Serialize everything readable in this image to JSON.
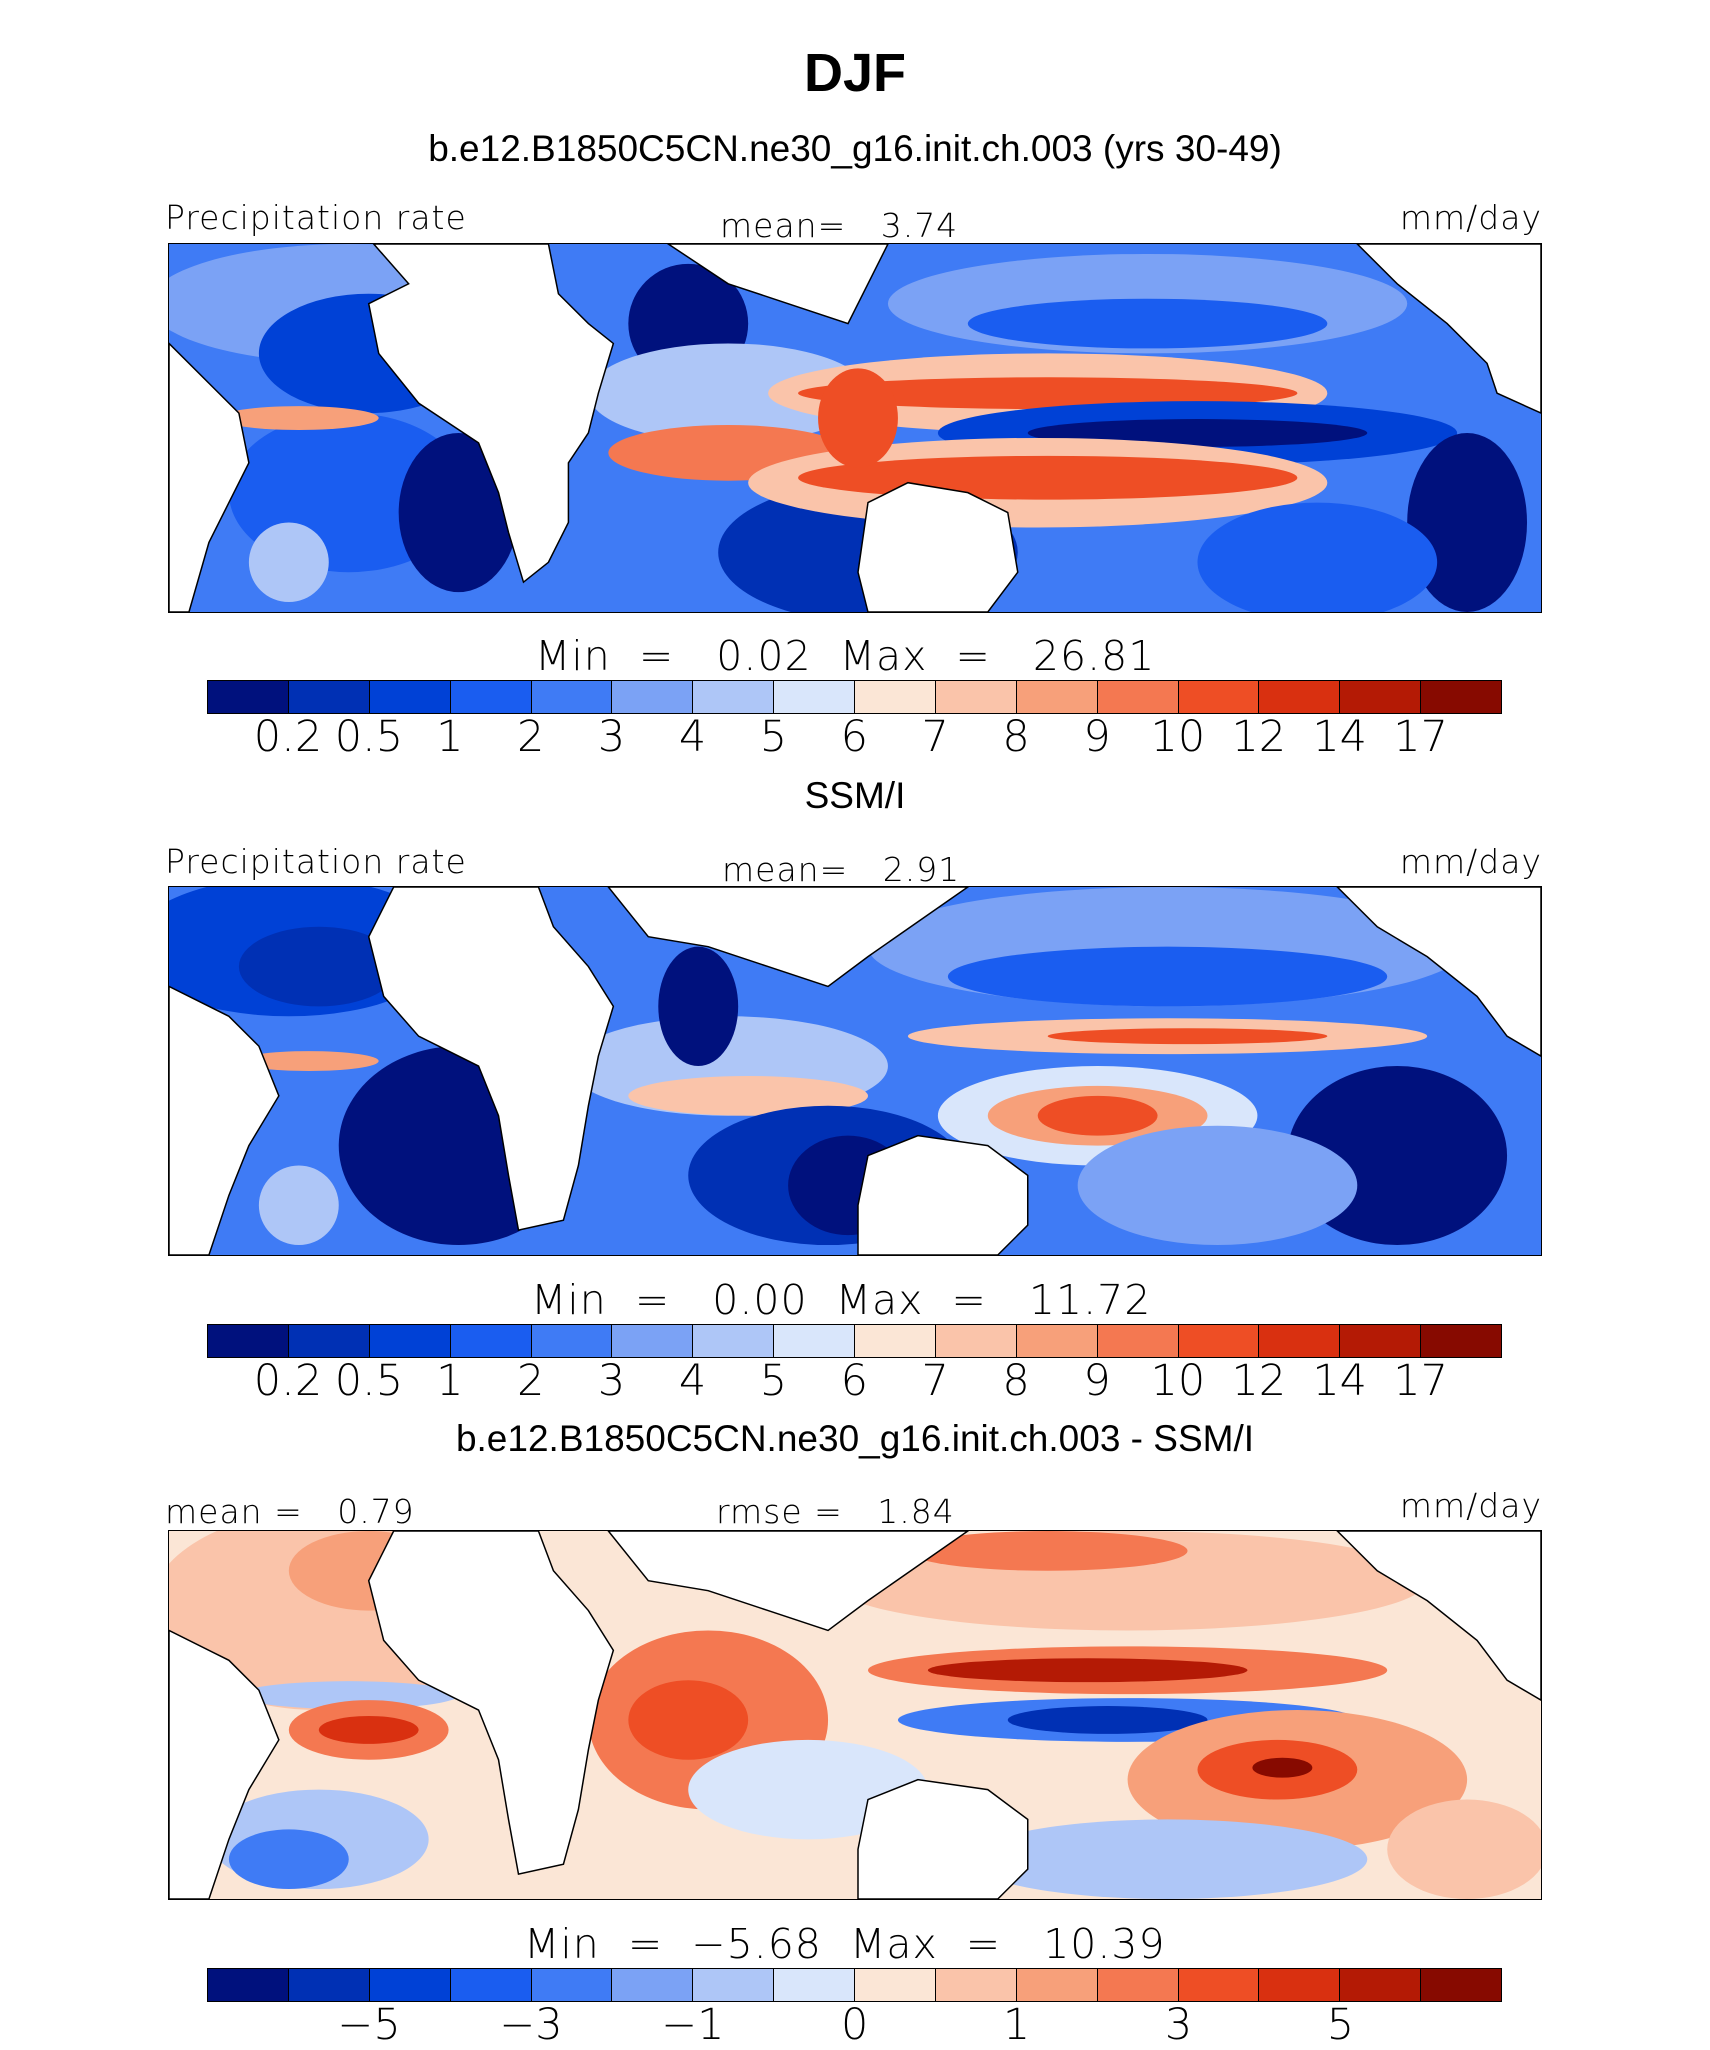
{
  "title": "DJF",
  "colors": {
    "precip": [
      "#00117d",
      "#0030b4",
      "#0041d6",
      "#1a5df0",
      "#3f7bf5",
      "#7ba2f5",
      "#aec6f7",
      "#d9e6fb",
      "#fbe6d6",
      "#fac4aa",
      "#f7a07a",
      "#f47851",
      "#ee4e25",
      "#d93010",
      "#b41a05",
      "#870a00"
    ],
    "diff": [
      "#00117d",
      "#0030b4",
      "#0041d6",
      "#1a5df0",
      "#3f7bf5",
      "#7ba2f5",
      "#aec6f7",
      "#d9e6fb",
      "#fbe6d6",
      "#fac4aa",
      "#f7a07a",
      "#f47851",
      "#ee4e25",
      "#d93010",
      "#b41a05",
      "#870a00"
    ]
  },
  "panels": [
    {
      "subtitle": "b.e12.B1850C5CN.ne30_g16.init.ch.003 (yrs 30-49)",
      "left_label": "Precipitation rate",
      "center_label": "mean=   3.74",
      "units": "mm/day",
      "min_max": "Min  =   0.02  Max  =   26.81",
      "ticks": [
        "0.2",
        "0.5",
        "1",
        "2",
        "3",
        "4",
        "5",
        "6",
        "7",
        "8",
        "9",
        "10",
        "12",
        "14",
        "17"
      ]
    },
    {
      "subtitle": "SSM/I",
      "left_label": "Precipitation rate",
      "center_label": "mean=   2.91",
      "units": "mm/day",
      "min_max": "Min  =   0.00  Max  =   11.72",
      "ticks": [
        "0.2",
        "0.5",
        "1",
        "2",
        "3",
        "4",
        "5",
        "6",
        "7",
        "8",
        "9",
        "10",
        "12",
        "14",
        "17"
      ]
    },
    {
      "subtitle": "b.e12.B1850C5CN.ne30_g16.init.ch.003 - SSM/I",
      "left_label": "mean =   0.79",
      "center_label": "rmse =   1.84",
      "units": "mm/day",
      "min_max": "Min  =  −5.68  Max  =   10.39",
      "ticks": [
        "−5",
        "−3",
        "−1",
        "0",
        "1",
        "3",
        "5"
      ]
    }
  ]
}
